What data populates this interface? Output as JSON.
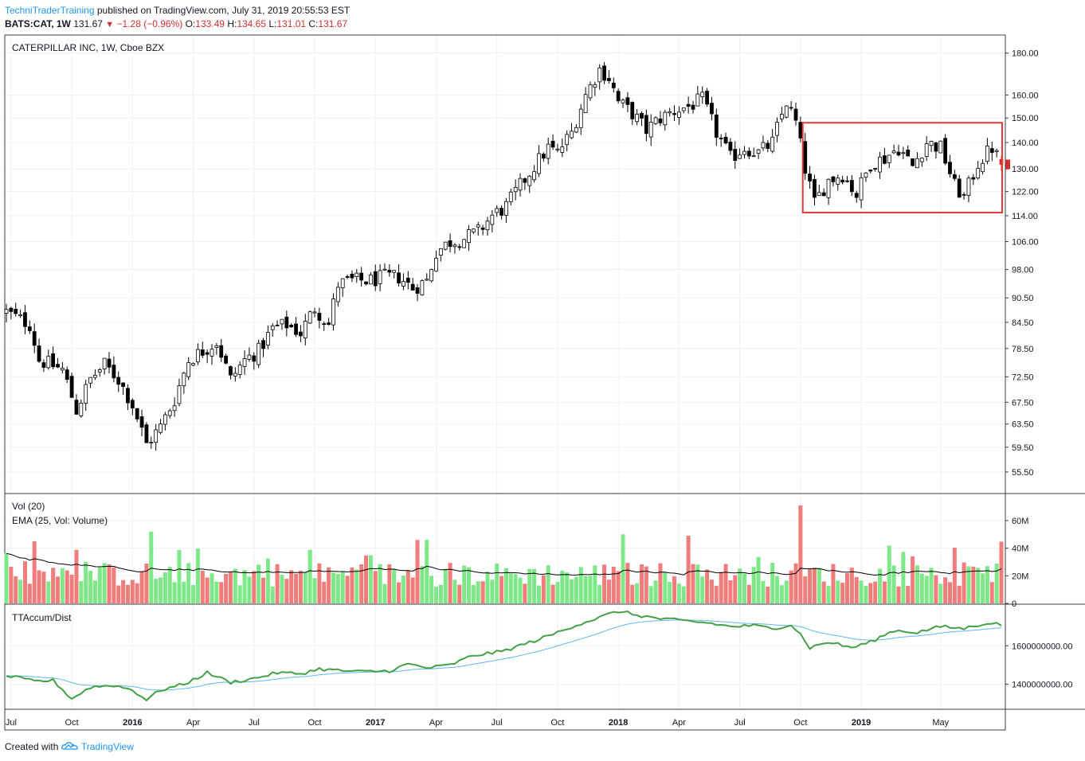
{
  "header": {
    "author": "TechniTraderTraining",
    "published": "published on TradingView.com, July 31, 2019 20:55:53 EST",
    "symbol": "BATS:CAT, 1W",
    "last": "131.67",
    "change": "−1.28 (−0.96%)",
    "o_label": "O:",
    "o_val": "133.49",
    "h_label": "H:",
    "h_val": "134.65",
    "l_label": "L:",
    "l_val": "131.01",
    "c_label": "C:",
    "c_val": "131.67"
  },
  "footer": {
    "created_with": "Created with",
    "brand": "TradingView"
  },
  "chart_data": {
    "type": "candlestick",
    "title": "CATERPILLAR INC, 1W, Cboe BZX",
    "colors": {
      "up": "#ffffff",
      "down": "#000000",
      "vol_up": "#7ee787",
      "vol_down": "#f07c7c",
      "ema": "#000000",
      "accum": "#43a047",
      "accum_signal": "#64b5f6",
      "box": "#e53935"
    },
    "x_axis": {
      "labels": [
        "Jul",
        "Oct",
        "2016",
        "Apr",
        "Jul",
        "Oct",
        "2017",
        "Apr",
        "Jul",
        "Oct",
        "2018",
        "Apr",
        "Jul",
        "Oct",
        "2019",
        "May"
      ],
      "bold_labels": [
        "2016",
        "2017",
        "2018",
        "2019"
      ],
      "label_week_index": [
        1,
        14,
        27,
        40,
        53,
        66,
        79,
        92,
        105,
        118,
        131,
        144,
        157,
        170,
        183,
        200
      ]
    },
    "price_axis": {
      "scale": "log",
      "range": [
        53.3,
        186
      ],
      "ticks": [
        180.0,
        160.0,
        150.0,
        140.0,
        130.0,
        122.0,
        114.0,
        106.0,
        98.0,
        90.5,
        84.5,
        78.5,
        72.5,
        67.5,
        63.5,
        59.5,
        55.5
      ],
      "tick_labels": [
        "180.00",
        "160.00",
        "150.00",
        "140.00",
        "130.00",
        "122.00",
        "114.00",
        "106.00",
        "98.00",
        "90.50",
        "84.50",
        "78.50",
        "72.50",
        "67.50",
        "63.50",
        "59.50",
        "55.50"
      ],
      "last_value": 131.67
    },
    "price_path": [
      {
        "w": 0,
        "p": 87
      },
      {
        "w": 5,
        "p": 84
      },
      {
        "w": 7,
        "p": 76
      },
      {
        "w": 12,
        "p": 74
      },
      {
        "w": 15,
        "p": 66
      },
      {
        "w": 18,
        "p": 72
      },
      {
        "w": 21,
        "p": 75
      },
      {
        "w": 24,
        "p": 72
      },
      {
        "w": 27,
        "p": 67
      },
      {
        "w": 30,
        "p": 60
      },
      {
        "w": 33,
        "p": 63
      },
      {
        "w": 36,
        "p": 68
      },
      {
        "w": 39,
        "p": 76
      },
      {
        "w": 42,
        "p": 78
      },
      {
        "w": 45,
        "p": 80
      },
      {
        "w": 48,
        "p": 72
      },
      {
        "w": 51,
        "p": 76
      },
      {
        "w": 54,
        "p": 78
      },
      {
        "w": 57,
        "p": 83
      },
      {
        "w": 60,
        "p": 84
      },
      {
        "w": 63,
        "p": 82
      },
      {
        "w": 66,
        "p": 88
      },
      {
        "w": 69,
        "p": 84
      },
      {
        "w": 71,
        "p": 94
      },
      {
        "w": 74,
        "p": 95
      },
      {
        "w": 78,
        "p": 95
      },
      {
        "w": 81,
        "p": 96
      },
      {
        "w": 84,
        "p": 96
      },
      {
        "w": 87,
        "p": 93
      },
      {
        "w": 90,
        "p": 95
      },
      {
        "w": 92,
        "p": 103
      },
      {
        "w": 95,
        "p": 106
      },
      {
        "w": 98,
        "p": 107
      },
      {
        "w": 101,
        "p": 109
      },
      {
        "w": 104,
        "p": 114
      },
      {
        "w": 107,
        "p": 117
      },
      {
        "w": 110,
        "p": 124
      },
      {
        "w": 113,
        "p": 131
      },
      {
        "w": 116,
        "p": 138
      },
      {
        "w": 118,
        "p": 136
      },
      {
        "w": 121,
        "p": 144
      },
      {
        "w": 124,
        "p": 160
      },
      {
        "w": 127,
        "p": 172
      },
      {
        "w": 129,
        "p": 168
      },
      {
        "w": 131,
        "p": 157
      },
      {
        "w": 134,
        "p": 152
      },
      {
        "w": 137,
        "p": 145
      },
      {
        "w": 140,
        "p": 150
      },
      {
        "w": 143,
        "p": 153
      },
      {
        "w": 146,
        "p": 155
      },
      {
        "w": 149,
        "p": 158
      },
      {
        "w": 152,
        "p": 144
      },
      {
        "w": 155,
        "p": 134
      },
      {
        "w": 158,
        "p": 138
      },
      {
        "w": 161,
        "p": 136
      },
      {
        "w": 164,
        "p": 140
      },
      {
        "w": 167,
        "p": 157
      },
      {
        "w": 169,
        "p": 148
      },
      {
        "w": 171,
        "p": 130
      },
      {
        "w": 173,
        "p": 118
      },
      {
        "w": 176,
        "p": 126
      },
      {
        "w": 179,
        "p": 128
      },
      {
        "w": 182,
        "p": 121
      },
      {
        "w": 185,
        "p": 132
      },
      {
        "w": 188,
        "p": 134
      },
      {
        "w": 191,
        "p": 138
      },
      {
        "w": 194,
        "p": 131
      },
      {
        "w": 197,
        "p": 140
      },
      {
        "w": 200,
        "p": 138
      },
      {
        "w": 203,
        "p": 124
      },
      {
        "w": 205,
        "p": 120
      },
      {
        "w": 208,
        "p": 132
      },
      {
        "w": 211,
        "p": 138
      },
      {
        "w": 213,
        "p": 131.67
      }
    ],
    "volume": {
      "label": "Vol (20)",
      "ema_label": "EMA (25, Vol: Volume)",
      "unit": "M",
      "ticks": [
        60,
        40,
        20,
        0
      ],
      "tick_labels": [
        "60M",
        "40M",
        "20M",
        "0"
      ],
      "range": [
        0,
        75
      ],
      "spikes": [
        {
          "w": 170,
          "v": 71
        },
        {
          "w": 6,
          "v": 45
        },
        {
          "w": 31,
          "v": 52
        },
        {
          "w": 88,
          "v": 46
        },
        {
          "w": 132,
          "v": 50
        },
        {
          "w": 146,
          "v": 49
        }
      ]
    },
    "accum_dist": {
      "label": "TTAccum/Dist",
      "ticks": [
        1600000000,
        1400000000
      ],
      "tick_labels": [
        "1600000000.00",
        "1400000000.00"
      ],
      "range": [
        1270000000,
        1800000000
      ],
      "path": [
        {
          "w": 0,
          "v": 1445000000
        },
        {
          "w": 6,
          "v": 1415000000
        },
        {
          "w": 10,
          "v": 1420000000
        },
        {
          "w": 14,
          "v": 1325000000
        },
        {
          "w": 18,
          "v": 1385000000
        },
        {
          "w": 23,
          "v": 1395000000
        },
        {
          "w": 27,
          "v": 1370000000
        },
        {
          "w": 30,
          "v": 1320000000
        },
        {
          "w": 33,
          "v": 1370000000
        },
        {
          "w": 38,
          "v": 1400000000
        },
        {
          "w": 43,
          "v": 1460000000
        },
        {
          "w": 48,
          "v": 1410000000
        },
        {
          "w": 53,
          "v": 1430000000
        },
        {
          "w": 58,
          "v": 1460000000
        },
        {
          "w": 63,
          "v": 1455000000
        },
        {
          "w": 67,
          "v": 1480000000
        },
        {
          "w": 72,
          "v": 1470000000
        },
        {
          "w": 76,
          "v": 1465000000
        },
        {
          "w": 82,
          "v": 1470000000
        },
        {
          "w": 86,
          "v": 1505000000
        },
        {
          "w": 90,
          "v": 1485000000
        },
        {
          "w": 95,
          "v": 1500000000
        },
        {
          "w": 100,
          "v": 1550000000
        },
        {
          "w": 106,
          "v": 1570000000
        },
        {
          "w": 111,
          "v": 1610000000
        },
        {
          "w": 116,
          "v": 1650000000
        },
        {
          "w": 121,
          "v": 1700000000
        },
        {
          "w": 126,
          "v": 1740000000
        },
        {
          "w": 131,
          "v": 1780000000
        },
        {
          "w": 135,
          "v": 1760000000
        },
        {
          "w": 140,
          "v": 1740000000
        },
        {
          "w": 145,
          "v": 1730000000
        },
        {
          "w": 150,
          "v": 1720000000
        },
        {
          "w": 155,
          "v": 1700000000
        },
        {
          "w": 160,
          "v": 1705000000
        },
        {
          "w": 164,
          "v": 1690000000
        },
        {
          "w": 168,
          "v": 1710000000
        },
        {
          "w": 170,
          "v": 1660000000
        },
        {
          "w": 172,
          "v": 1590000000
        },
        {
          "w": 176,
          "v": 1620000000
        },
        {
          "w": 181,
          "v": 1590000000
        },
        {
          "w": 185,
          "v": 1620000000
        },
        {
          "w": 190,
          "v": 1680000000
        },
        {
          "w": 195,
          "v": 1670000000
        },
        {
          "w": 200,
          "v": 1700000000
        },
        {
          "w": 205,
          "v": 1690000000
        },
        {
          "w": 210,
          "v": 1720000000
        },
        {
          "w": 213,
          "v": 1710000000
        }
      ]
    },
    "box": {
      "w_start": 171,
      "w_end": 213,
      "p_top": 148,
      "p_bottom": 115
    }
  }
}
